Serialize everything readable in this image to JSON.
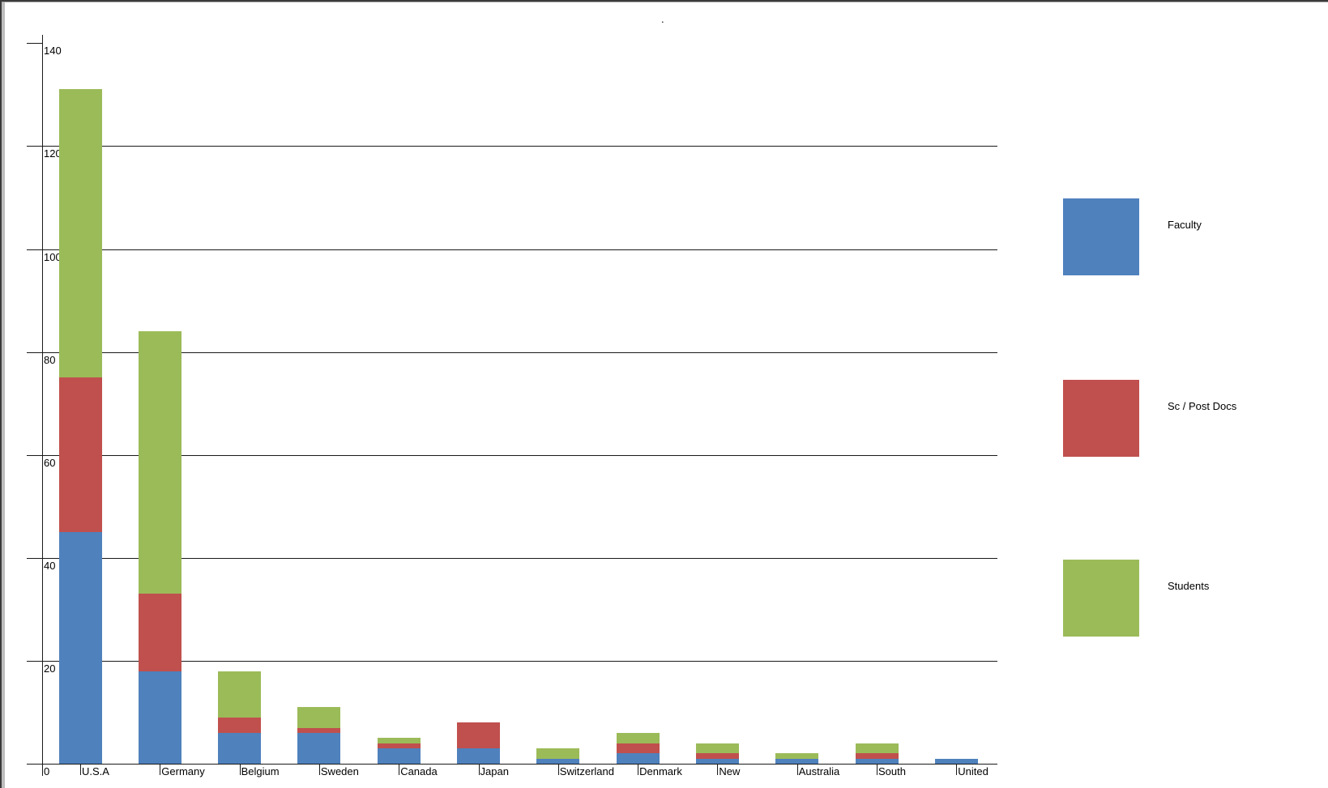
{
  "window": {
    "title_dot": "."
  },
  "chart_data": {
    "type": "bar",
    "stacked": true,
    "title": ".",
    "xlabel": "",
    "ylabel": "",
    "categories": [
      "U.S.A",
      "Germany",
      "Belgium",
      "Sweden",
      "Canada",
      "Japan",
      "Switzerland",
      "Denmark",
      "New",
      "Australia",
      "South",
      "United"
    ],
    "series": [
      {
        "name": "Faculty",
        "color": "#4F81BD",
        "values": [
          45,
          18,
          6,
          6,
          3,
          3,
          1,
          2,
          1,
          1,
          1,
          1
        ]
      },
      {
        "name": "Sc / Post Docs",
        "color": "#C0504D",
        "values": [
          30,
          15,
          3,
          1,
          1,
          5,
          0,
          2,
          1,
          0,
          1,
          0
        ]
      },
      {
        "name": "Students",
        "color": "#9BBB59",
        "values": [
          56,
          51,
          9,
          4,
          1,
          0,
          2,
          2,
          2,
          1,
          2,
          0
        ]
      }
    ],
    "totals": [
      131,
      84,
      18,
      11,
      5,
      8,
      3,
      6,
      4,
      2,
      4,
      1
    ],
    "ylim": [
      0,
      140
    ],
    "ytick_step": 20,
    "ytick_labels": [
      "0",
      "20",
      "40",
      "60",
      "80",
      "100",
      "120",
      "140"
    ],
    "grid": true,
    "gridline_values": [
      20,
      40,
      60,
      80,
      100,
      120
    ],
    "legend_position": "right"
  },
  "colors": {
    "axis": "#1a1a1a",
    "background": "#ffffff",
    "faculty": "#4F81BD",
    "sc_post_docs": "#C0504D",
    "students": "#9BBB59"
  }
}
